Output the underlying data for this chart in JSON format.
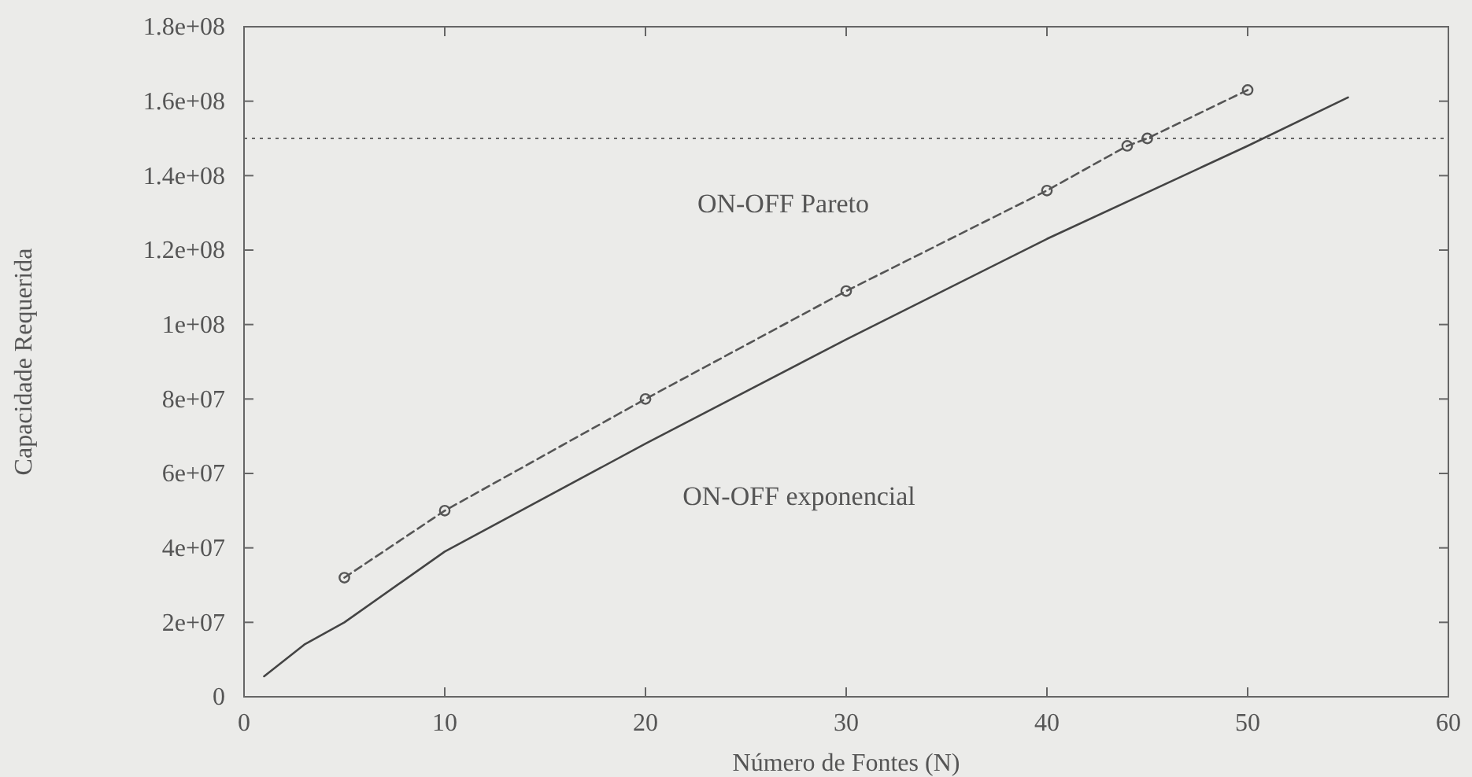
{
  "chart_data": {
    "type": "line",
    "xlabel": "Número de Fontes (N)",
    "ylabel": "Capacidade Requerida",
    "xlim": [
      0,
      60
    ],
    "xticks": [
      0,
      10,
      20,
      30,
      40,
      50,
      60
    ],
    "ylim": [
      0,
      180000000
    ],
    "yticks": [
      0,
      {
        "value": 20000000,
        "label": "2e+07"
      },
      {
        "value": 40000000,
        "label": "4e+07"
      },
      {
        "value": 60000000,
        "label": "6e+07"
      },
      {
        "value": 80000000,
        "label": "8e+07"
      },
      {
        "value": 100000000,
        "label": "1e+08"
      },
      {
        "value": 120000000,
        "label": "1.2e+08"
      },
      {
        "value": 140000000,
        "label": "1.4e+08"
      },
      {
        "value": 160000000,
        "label": "1.6e+08"
      },
      {
        "value": 180000000,
        "label": "1.8e+08"
      }
    ],
    "grid": false,
    "ref_lines": [
      {
        "axis": "y",
        "value": 150000000,
        "line_style": "dotted",
        "color": "#666666"
      }
    ],
    "series": [
      {
        "name": "ON-OFF Pareto",
        "color": "#555555",
        "marker": "circle",
        "line_style": "dashed",
        "x": [
          5,
          10,
          20,
          30,
          40,
          44,
          45,
          50
        ],
        "values": [
          32000000,
          50000000,
          80000000,
          109000000,
          136000000,
          148000000,
          150000000,
          163000000
        ]
      },
      {
        "name": "ON-OFF exponencial",
        "color": "#444444",
        "marker": "none",
        "line_style": "solid",
        "x": [
          1,
          3,
          5,
          10,
          20,
          30,
          40,
          50,
          55
        ],
        "values": [
          5500000,
          14000000,
          20000000,
          39000000,
          68000000,
          96000000,
          123000000,
          148000000,
          161000000
        ]
      }
    ]
  }
}
